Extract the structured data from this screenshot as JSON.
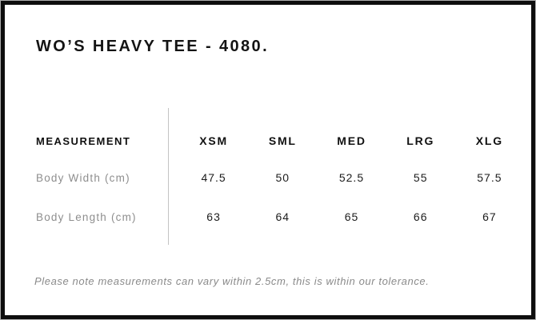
{
  "header": {
    "title": "WO’S HEAVY TEE - 4080."
  },
  "table": {
    "measurement_header": "MEASUREMENT",
    "size_headers": [
      "XSM",
      "SML",
      "MED",
      "LRG",
      "XLG"
    ],
    "rows": [
      {
        "label": "Body Width (cm)",
        "values": [
          "47.5",
          "50",
          "52.5",
          "55",
          "57.5"
        ]
      },
      {
        "label": "Body Length (cm)",
        "values": [
          "63",
          "64",
          "65",
          "66",
          "67"
        ]
      }
    ]
  },
  "footer": {
    "note": "Please note measurements can vary within 2.5cm, this is within our tolerance."
  },
  "colors": {
    "border": "#0e0e0e",
    "text_primary": "#141414",
    "text_secondary": "#8e8e8e",
    "divider": "#c3c3c3"
  }
}
